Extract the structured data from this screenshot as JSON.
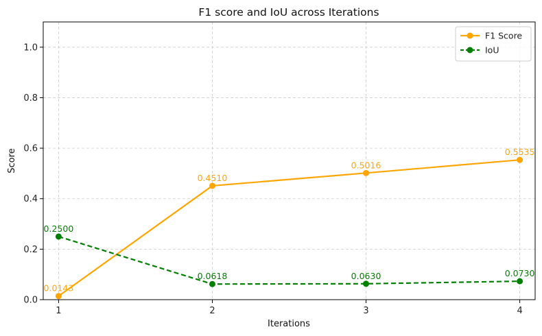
{
  "chart_data": {
    "type": "line",
    "title": "F1 score and IoU across Iterations",
    "xlabel": "Iterations",
    "ylabel": "Score",
    "x": [
      1,
      2,
      3,
      4
    ],
    "x_tick_labels": [
      "1",
      "2",
      "3",
      "4"
    ],
    "xlim": [
      0.9,
      4.1
    ],
    "ylim": [
      0.0,
      1.1
    ],
    "y_ticks": [
      0.0,
      0.2,
      0.4,
      0.6,
      0.8,
      1.0
    ],
    "y_tick_labels": [
      "0.0",
      "0.2",
      "0.4",
      "0.6",
      "0.8",
      "1.0"
    ],
    "grid": true,
    "legend_position": "top-right",
    "series": [
      {
        "name": "F1 Score",
        "values": [
          0.0143,
          0.451,
          0.5016,
          0.5535
        ],
        "labels": [
          "0.0143",
          "0.4510",
          "0.5016",
          "0.5535"
        ],
        "color": "#FFA500",
        "line_style": "solid",
        "marker": "circle"
      },
      {
        "name": "IoU",
        "values": [
          0.25,
          0.0618,
          0.063,
          0.073
        ],
        "labels": [
          "0.2500",
          "0.0618",
          "0.0630",
          "0.0730"
        ],
        "color": "#008000",
        "line_style": "dashed",
        "marker": "circle"
      }
    ]
  }
}
